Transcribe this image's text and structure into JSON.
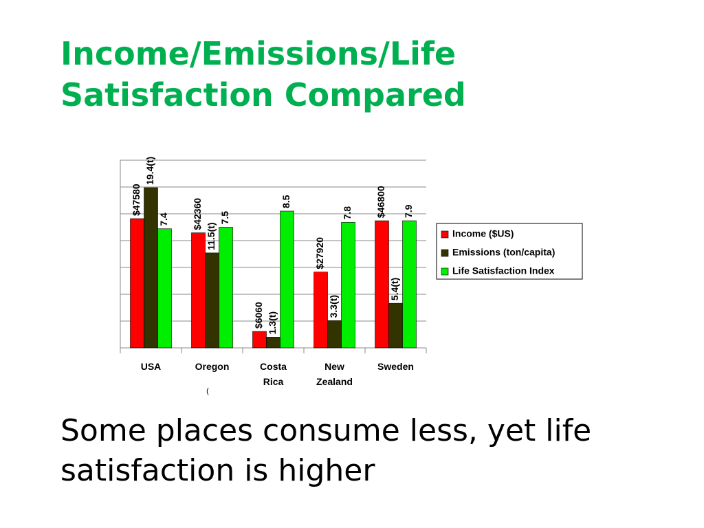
{
  "slide": {
    "title": "Income/Emissions/Life Satisfaction Compared",
    "body": "Some places consume less, yet life satisfaction is higher"
  },
  "chart_data": {
    "type": "bar",
    "categories": [
      "USA",
      "Oregon",
      "Costa Rica",
      "New Zealand",
      "Sweden"
    ],
    "annotation": "(",
    "series": [
      {
        "name": "Income ($US)",
        "color": "#ff0000",
        "values": [
          47580,
          42360,
          6060,
          27920,
          46800
        ],
        "value_labels": [
          "$47580",
          "$42360",
          "$6060",
          "$27920",
          "$46800"
        ]
      },
      {
        "name": "Emissions (ton/capita)",
        "color": "#333300",
        "values": [
          19.4,
          11.5,
          1.3,
          3.3,
          5.4
        ],
        "value_labels": [
          "19.4(t)",
          "11.5(t)",
          "1.3(t)",
          "3.3(t)",
          "5.4(t)"
        ]
      },
      {
        "name": "Life Satisfaction Index",
        "color": "#00ee00",
        "values": [
          7.4,
          7.5,
          8.5,
          7.8,
          7.9
        ]
      }
    ],
    "legend": "right",
    "grid": true
  }
}
